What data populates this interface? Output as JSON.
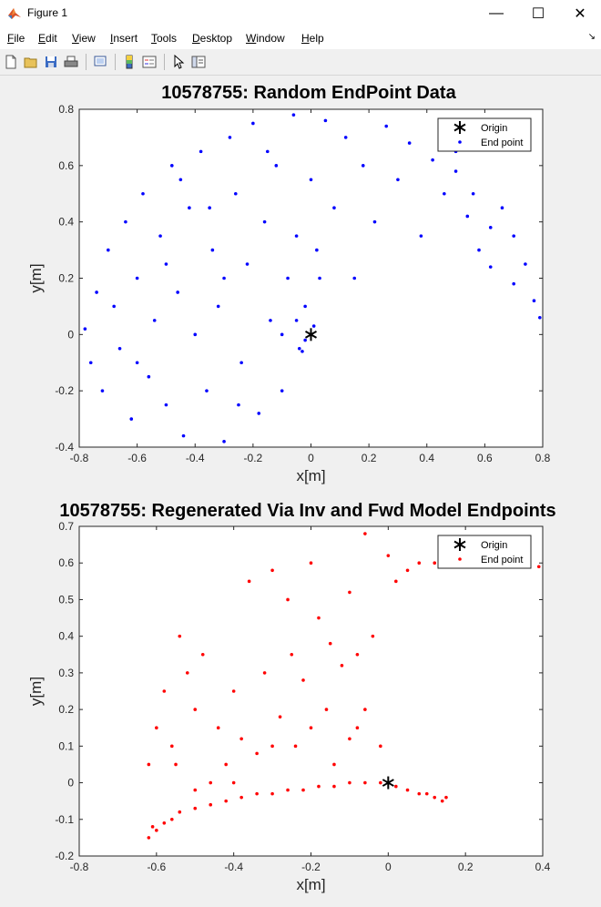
{
  "window": {
    "title": "Figure 1",
    "minimize": "—",
    "maximize": "☐",
    "close": "✕"
  },
  "menu": {
    "items": [
      {
        "label": "File",
        "accel": "F",
        "rest": "ile"
      },
      {
        "label": "Edit",
        "accel": "E",
        "rest": "dit"
      },
      {
        "label": "View",
        "accel": "V",
        "rest": "iew"
      },
      {
        "label": "Insert",
        "accel": "I",
        "rest": "nsert"
      },
      {
        "label": "Tools",
        "accel": "T",
        "rest": "ools"
      },
      {
        "label": "Desktop",
        "accel": "D",
        "rest": "esktop"
      },
      {
        "label": "Window",
        "accel": "W",
        "rest": "indow"
      },
      {
        "label": "Help",
        "accel": "H",
        "rest": "elp"
      }
    ]
  },
  "toolbar": {
    "icons": [
      "new-figure-icon",
      "open-file-icon",
      "save-icon",
      "print-icon",
      "print-preview-icon",
      "colorbar-icon",
      "legend-icon",
      "pointer-icon",
      "property-editor-icon"
    ]
  },
  "chart_data": [
    {
      "type": "scatter",
      "title": "10578755: Random EndPoint Data",
      "xlabel": "x[m]",
      "ylabel": "y[m]",
      "xlim": [
        -0.8,
        0.8
      ],
      "ylim": [
        -0.4,
        0.8
      ],
      "xticks": [
        -0.8,
        -0.6,
        -0.4,
        -0.2,
        0,
        0.2,
        0.4,
        0.6,
        0.8
      ],
      "yticks": [
        -0.4,
        -0.2,
        0,
        0.2,
        0.4,
        0.6,
        0.8
      ],
      "xtick_labels": [
        "-0.8",
        "-0.6",
        "-0.4",
        "-0.2",
        "0",
        "0.2",
        "0.4",
        "0.6",
        "0.8"
      ],
      "ytick_labels": [
        "-0.4",
        "-0.2",
        "0",
        "0.2",
        "0.4",
        "0.6",
        "0.8"
      ],
      "grid": false,
      "legend_position": "top-right",
      "series": [
        {
          "name": "Origin",
          "color": "#000000",
          "marker": "asterisk",
          "points": [
            [
              0,
              0
            ]
          ]
        },
        {
          "name": "End point",
          "color": "#0000ff",
          "marker": "dot",
          "points": [
            [
              -0.78,
              0.02
            ],
            [
              -0.76,
              -0.1
            ],
            [
              -0.74,
              0.15
            ],
            [
              -0.72,
              -0.2
            ],
            [
              -0.7,
              0.3
            ],
            [
              -0.68,
              0.1
            ],
            [
              -0.66,
              -0.05
            ],
            [
              -0.64,
              0.4
            ],
            [
              -0.62,
              -0.3
            ],
            [
              -0.6,
              0.2
            ],
            [
              -0.58,
              0.5
            ],
            [
              -0.56,
              -0.15
            ],
            [
              -0.54,
              0.05
            ],
            [
              -0.52,
              0.35
            ],
            [
              -0.5,
              -0.25
            ],
            [
              -0.48,
              0.6
            ],
            [
              -0.46,
              0.15
            ],
            [
              -0.44,
              -0.36
            ],
            [
              -0.42,
              0.45
            ],
            [
              -0.4,
              0.0
            ],
            [
              -0.38,
              0.65
            ],
            [
              -0.36,
              -0.2
            ],
            [
              -0.34,
              0.3
            ],
            [
              -0.32,
              0.1
            ],
            [
              -0.3,
              -0.38
            ],
            [
              -0.28,
              0.7
            ],
            [
              -0.26,
              0.5
            ],
            [
              -0.24,
              -0.1
            ],
            [
              -0.22,
              0.25
            ],
            [
              -0.2,
              0.75
            ],
            [
              -0.18,
              -0.28
            ],
            [
              -0.16,
              0.4
            ],
            [
              -0.14,
              0.05
            ],
            [
              -0.12,
              0.6
            ],
            [
              -0.1,
              -0.2
            ],
            [
              -0.08,
              0.2
            ],
            [
              -0.06,
              0.78
            ],
            [
              -0.04,
              -0.05
            ],
            [
              -0.02,
              0.1
            ],
            [
              0.0,
              0.55
            ],
            [
              0.02,
              0.3
            ],
            [
              0.05,
              0.76
            ],
            [
              0.08,
              0.45
            ],
            [
              0.12,
              0.7
            ],
            [
              0.15,
              0.2
            ],
            [
              0.18,
              0.6
            ],
            [
              0.22,
              0.4
            ],
            [
              0.26,
              0.74
            ],
            [
              0.3,
              0.55
            ],
            [
              0.34,
              0.68
            ],
            [
              0.38,
              0.35
            ],
            [
              0.42,
              0.62
            ],
            [
              0.46,
              0.5
            ],
            [
              0.5,
              0.58
            ],
            [
              0.54,
              0.42
            ],
            [
              0.58,
              0.3
            ],
            [
              0.62,
              0.24
            ],
            [
              0.66,
              0.45
            ],
            [
              0.7,
              0.35
            ],
            [
              0.74,
              0.25
            ],
            [
              0.77,
              0.12
            ],
            [
              0.79,
              0.06
            ],
            [
              0.5,
              0.65
            ],
            [
              0.56,
              0.5
            ],
            [
              0.62,
              0.38
            ],
            [
              0.7,
              0.18
            ],
            [
              -0.3,
              0.2
            ],
            [
              -0.25,
              -0.25
            ],
            [
              -0.5,
              0.25
            ],
            [
              -0.6,
              -0.1
            ],
            [
              -0.45,
              0.55
            ],
            [
              -0.35,
              0.45
            ],
            [
              -0.15,
              0.65
            ],
            [
              -0.05,
              0.35
            ],
            [
              -0.1,
              0.0
            ],
            [
              -0.02,
              -0.02
            ],
            [
              0.01,
              0.03
            ],
            [
              -0.05,
              0.05
            ],
            [
              -0.03,
              -0.06
            ],
            [
              0.03,
              0.2
            ]
          ]
        }
      ]
    },
    {
      "type": "scatter",
      "title": "10578755: Regenerated Via Inv and Fwd Model Endpoints",
      "xlabel": "x[m]",
      "ylabel": "y[m]",
      "xlim": [
        -0.8,
        0.4
      ],
      "ylim": [
        -0.2,
        0.7
      ],
      "xticks": [
        -0.8,
        -0.6,
        -0.4,
        -0.2,
        0,
        0.2,
        0.4
      ],
      "yticks": [
        -0.2,
        -0.1,
        0,
        0.1,
        0.2,
        0.3,
        0.4,
        0.5,
        0.6,
        0.7
      ],
      "xtick_labels": [
        "-0.8",
        "-0.6",
        "-0.4",
        "-0.2",
        "0",
        "0.2",
        "0.4"
      ],
      "ytick_labels": [
        "-0.2",
        "-0.1",
        "0",
        "0.1",
        "0.2",
        "0.3",
        "0.4",
        "0.5",
        "0.6",
        "0.7"
      ],
      "grid": false,
      "legend_position": "top-right",
      "series": [
        {
          "name": "Origin",
          "color": "#000000",
          "marker": "asterisk",
          "points": [
            [
              0,
              0
            ]
          ]
        },
        {
          "name": "End point",
          "color": "#ff0000",
          "marker": "dot",
          "points": [
            [
              -0.62,
              -0.15
            ],
            [
              -0.61,
              -0.12
            ],
            [
              -0.6,
              -0.13
            ],
            [
              -0.58,
              -0.11
            ],
            [
              -0.56,
              -0.1
            ],
            [
              -0.54,
              -0.08
            ],
            [
              -0.5,
              -0.07
            ],
            [
              -0.46,
              -0.06
            ],
            [
              -0.42,
              -0.05
            ],
            [
              -0.38,
              -0.04
            ],
            [
              -0.34,
              -0.03
            ],
            [
              -0.3,
              -0.03
            ],
            [
              -0.26,
              -0.02
            ],
            [
              -0.22,
              -0.02
            ],
            [
              -0.18,
              -0.01
            ],
            [
              -0.14,
              -0.01
            ],
            [
              -0.1,
              0.0
            ],
            [
              -0.06,
              0.0
            ],
            [
              -0.02,
              0.0
            ],
            [
              0.0,
              0.0
            ],
            [
              0.02,
              -0.01
            ],
            [
              0.05,
              -0.02
            ],
            [
              0.08,
              -0.03
            ],
            [
              0.1,
              -0.03
            ],
            [
              0.12,
              -0.04
            ],
            [
              0.14,
              -0.05
            ],
            [
              0.15,
              -0.04
            ],
            [
              -0.62,
              0.05
            ],
            [
              -0.6,
              0.15
            ],
            [
              -0.58,
              0.25
            ],
            [
              -0.56,
              0.1
            ],
            [
              -0.54,
              0.4
            ],
            [
              -0.52,
              0.3
            ],
            [
              -0.5,
              0.2
            ],
            [
              -0.48,
              0.35
            ],
            [
              -0.46,
              0.0
            ],
            [
              -0.44,
              0.15
            ],
            [
              -0.42,
              0.05
            ],
            [
              -0.4,
              0.25
            ],
            [
              -0.38,
              0.12
            ],
            [
              -0.36,
              0.55
            ],
            [
              -0.34,
              0.08
            ],
            [
              -0.32,
              0.3
            ],
            [
              -0.3,
              0.58
            ],
            [
              -0.28,
              0.18
            ],
            [
              -0.26,
              0.5
            ],
            [
              -0.24,
              0.1
            ],
            [
              -0.22,
              0.28
            ],
            [
              -0.2,
              0.6
            ],
            [
              -0.18,
              0.45
            ],
            [
              -0.16,
              0.2
            ],
            [
              -0.14,
              0.05
            ],
            [
              -0.12,
              0.32
            ],
            [
              -0.1,
              0.52
            ],
            [
              -0.08,
              0.15
            ],
            [
              -0.06,
              0.68
            ],
            [
              -0.04,
              0.4
            ],
            [
              -0.02,
              0.1
            ],
            [
              0.0,
              0.62
            ],
            [
              0.02,
              0.55
            ],
            [
              0.05,
              0.58
            ],
            [
              0.08,
              0.6
            ],
            [
              0.12,
              0.6
            ],
            [
              0.18,
              0.59
            ],
            [
              0.24,
              0.6
            ],
            [
              0.3,
              0.6
            ],
            [
              0.36,
              0.59
            ],
            [
              0.39,
              0.59
            ],
            [
              -0.08,
              0.35
            ],
            [
              -0.06,
              0.2
            ],
            [
              -0.1,
              0.12
            ],
            [
              -0.15,
              0.38
            ],
            [
              -0.2,
              0.15
            ],
            [
              -0.3,
              0.1
            ],
            [
              -0.25,
              0.35
            ],
            [
              -0.4,
              0.0
            ],
            [
              -0.5,
              -0.02
            ],
            [
              -0.55,
              0.05
            ]
          ]
        }
      ]
    }
  ]
}
